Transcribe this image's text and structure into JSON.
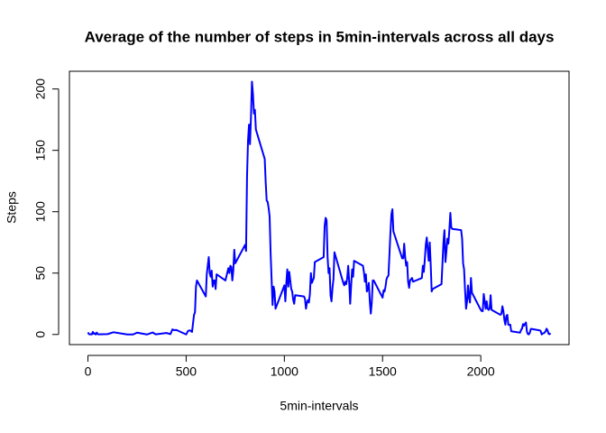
{
  "chart_data": {
    "type": "line",
    "title": "Average of the number of steps in 5min-intervals across all days",
    "x_label": "5min-intervals",
    "y_label": "Steps",
    "x": [
      0,
      5,
      10,
      15,
      20,
      25,
      30,
      35,
      40,
      45,
      50,
      55,
      100,
      130,
      200,
      230,
      250,
      300,
      330,
      345,
      400,
      420,
      430,
      440,
      450,
      500,
      510,
      520,
      530,
      540,
      545,
      550,
      555,
      600,
      605,
      615,
      620,
      625,
      630,
      635,
      640,
      645,
      650,
      655,
      700,
      715,
      720,
      725,
      730,
      735,
      740,
      745,
      750,
      800,
      805,
      810,
      815,
      820,
      825,
      830,
      835,
      840,
      845,
      850,
      855,
      900,
      905,
      910,
      915,
      920,
      925,
      930,
      935,
      940,
      945,
      950,
      955,
      1000,
      1005,
      1010,
      1015,
      1020,
      1025,
      1030,
      1035,
      1040,
      1045,
      1050,
      1055,
      1100,
      1105,
      1110,
      1115,
      1120,
      1125,
      1130,
      1135,
      1140,
      1145,
      1150,
      1155,
      1200,
      1205,
      1210,
      1215,
      1220,
      1225,
      1230,
      1235,
      1240,
      1245,
      1250,
      1255,
      1300,
      1305,
      1310,
      1315,
      1320,
      1325,
      1330,
      1335,
      1340,
      1345,
      1350,
      1355,
      1400,
      1405,
      1410,
      1415,
      1420,
      1425,
      1430,
      1435,
      1440,
      1445,
      1450,
      1455,
      1500,
      1505,
      1510,
      1515,
      1520,
      1525,
      1530,
      1535,
      1540,
      1545,
      1550,
      1555,
      1600,
      1605,
      1610,
      1615,
      1620,
      1625,
      1630,
      1635,
      1640,
      1645,
      1650,
      1655,
      1700,
      1705,
      1710,
      1715,
      1720,
      1725,
      1730,
      1735,
      1740,
      1745,
      1750,
      1755,
      1800,
      1805,
      1810,
      1815,
      1820,
      1825,
      1830,
      1835,
      1840,
      1845,
      1850,
      1855,
      1900,
      1905,
      1910,
      1915,
      1920,
      1925,
      1930,
      1935,
      1940,
      1945,
      1950,
      1955,
      2000,
      2005,
      2010,
      2015,
      2020,
      2025,
      2030,
      2035,
      2040,
      2045,
      2050,
      2055,
      2100,
      2105,
      2110,
      2115,
      2120,
      2125,
      2130,
      2135,
      2140,
      2145,
      2150,
      2155,
      2200,
      2205,
      2210,
      2215,
      2220,
      2225,
      2230,
      2235,
      2240,
      2245,
      2250,
      2255,
      2300,
      2305,
      2310,
      2315,
      2320,
      2325,
      2330,
      2335,
      2340,
      2345,
      2350,
      2355
    ],
    "series": [
      {
        "name": "Steps",
        "color": "#0000ff",
        "values": [
          1.7,
          0.3,
          0.1,
          0.2,
          0.1,
          2.1,
          0.5,
          0.9,
          0,
          1.5,
          0.3,
          0.1,
          0.3,
          1.8,
          0,
          0,
          1.5,
          0,
          1.6,
          0.1,
          1.2,
          0.3,
          4.1,
          3.5,
          3.7,
          0,
          3,
          3.3,
          2.1,
          16,
          18,
          39,
          44,
          31,
          49,
          63,
          50,
          47,
          52,
          39,
          44,
          44,
          37,
          49,
          44,
          54,
          50,
          56,
          55,
          44,
          52,
          69,
          58,
          73,
          68,
          129,
          158,
          171,
          155,
          177,
          206,
          196,
          180,
          183,
          167,
          143,
          124,
          109,
          108,
          103,
          96,
          66,
          45,
          24,
          39,
          35,
          21,
          40,
          27,
          42,
          53,
          39,
          51,
          44,
          37,
          35,
          28,
          25,
          32,
          31,
          29,
          21,
          26,
          28,
          26,
          33,
          50,
          42,
          44,
          46,
          59,
          63,
          88,
          95,
          93,
          63,
          50,
          54,
          32,
          27,
          38,
          45,
          67,
          42,
          40,
          43,
          41,
          46,
          56,
          43,
          25,
          40,
          53,
          47,
          60,
          56,
          51,
          43,
          49,
          35,
          37,
          42,
          27,
          17,
          26,
          44,
          44,
          30,
          36,
          35,
          39,
          45,
          47,
          48,
          65,
          83,
          98,
          102,
          84,
          62,
          62,
          74,
          63,
          56,
          59,
          43,
          38,
          44,
          45,
          46,
          43,
          46,
          56,
          51,
          61,
          73,
          79,
          69,
          60,
          75,
          57,
          35,
          37,
          41,
          58,
          75,
          85,
          59,
          68,
          78,
          74,
          85,
          99,
          87,
          86,
          85,
          78,
          58,
          53,
          36,
          21,
          27,
          40,
          30,
          26,
          46,
          34,
          20,
          19,
          19,
          33,
          27,
          21,
          27,
          21,
          20,
          21,
          32,
          20,
          16,
          17,
          23,
          19,
          12,
          8,
          15,
          16,
          8,
          7.8,
          8,
          2.6,
          1.5,
          3.7,
          4.8,
          8.5,
          7.1,
          8.7,
          9.8,
          2.2,
          0.3,
          0.1,
          1.6,
          4.6,
          3.3,
          2.8,
          0,
          0.8,
          1,
          1.6,
          2.6,
          4.7,
          3.3,
          0.6,
          0.2,
          1.1
        ]
      }
    ],
    "xlim": [
      -94.2,
      2449.2
    ],
    "ylim": [
      -8.25,
      214.42
    ],
    "xticks": [
      0,
      500,
      1000,
      1500,
      2000
    ],
    "yticks": [
      0,
      50,
      100,
      150,
      200
    ]
  }
}
